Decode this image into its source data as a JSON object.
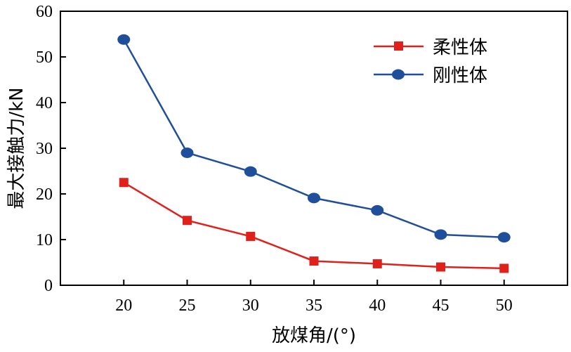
{
  "chart_data": {
    "type": "line",
    "x": [
      20,
      25,
      30,
      35,
      40,
      45,
      50
    ],
    "series": [
      {
        "name": "柔性体",
        "values": [
          22.5,
          14.2,
          10.7,
          5.3,
          4.7,
          4.0,
          3.7
        ],
        "color": "#e0201b",
        "marker": "square"
      },
      {
        "name": "刚性体",
        "values": [
          53.8,
          29.0,
          24.9,
          19.1,
          16.4,
          11.1,
          10.5
        ],
        "color": "#1f4e9a",
        "marker": "circle"
      }
    ],
    "xlabel": "放煤角/(°)",
    "ylabel": "最大接触力/kN",
    "xlim": [
      15,
      55
    ],
    "ylim": [
      0,
      60
    ],
    "xticks": [
      "20",
      "25",
      "30",
      "35",
      "40",
      "45",
      "50"
    ],
    "yticks": [
      "0",
      "10",
      "20",
      "30",
      "40",
      "50",
      "60"
    ],
    "grid": false,
    "legend_position": "top-right"
  }
}
